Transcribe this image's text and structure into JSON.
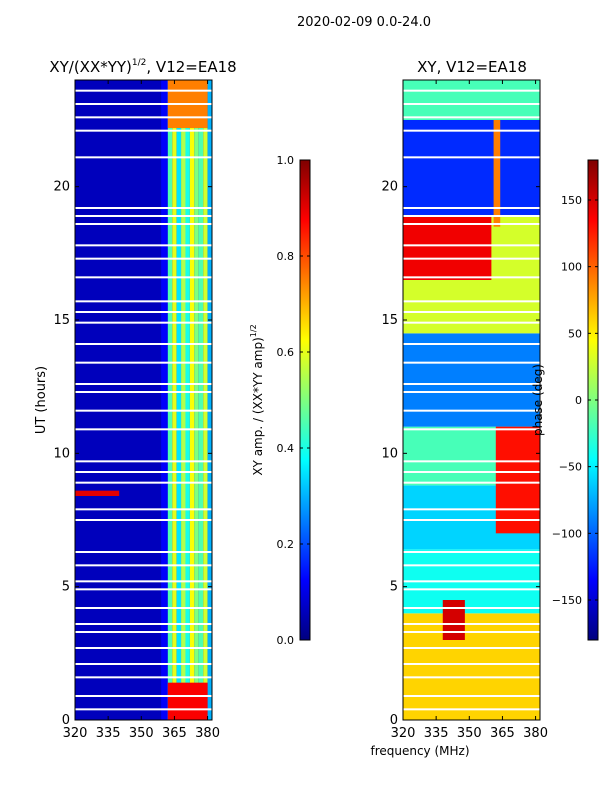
{
  "figure": {
    "suptitle": "2020-02-09 0.0-24.0",
    "shared_xlabel": "frequency (MHz)"
  },
  "colors": {
    "jet": [
      "#00007f",
      "#0000ff",
      "#007fff",
      "#00ffff",
      "#7fff7f",
      "#ffff00",
      "#ff7f00",
      "#ff0000",
      "#7f0000"
    ],
    "gap": "#ffffff"
  },
  "chart_data": [
    {
      "type": "heatmap",
      "title_main": "XY/(XX*YY)",
      "title_sup": "1/2",
      "title_rest": ", V12=EA18",
      "xlabel": "",
      "ylabel": "UT (hours)",
      "xlim": [
        320,
        382
      ],
      "ylim": [
        0,
        24
      ],
      "xticks": [
        320,
        335,
        350,
        365,
        380
      ],
      "yticks": [
        0,
        5,
        10,
        15,
        20
      ],
      "colorbar": {
        "label_main": "XY amp. / (XX*YY amp)",
        "label_sup": "1/2",
        "range": [
          0.0,
          1.0
        ],
        "ticks": [
          "0.0",
          "0.2",
          "0.4",
          "0.6",
          "0.8",
          "1.0"
        ],
        "tick_values": [
          0.0,
          0.2,
          0.4,
          0.6,
          0.8,
          1.0
        ]
      },
      "bands": [
        {
          "f0": 320,
          "f1": 359,
          "value": 0.06
        },
        {
          "f0": 359,
          "f1": 362,
          "value": 0.12
        },
        {
          "f0": 362,
          "f1": 364,
          "value": 0.45
        },
        {
          "f0": 364,
          "f1": 366,
          "value": 0.6
        },
        {
          "f0": 366,
          "f1": 368,
          "value": 0.35
        },
        {
          "f0": 368,
          "f1": 370,
          "value": 0.55
        },
        {
          "f0": 370,
          "f1": 372,
          "value": 0.4
        },
        {
          "f0": 372,
          "f1": 374,
          "value": 0.62
        },
        {
          "f0": 374,
          "f1": 376,
          "value": 0.5
        },
        {
          "f0": 376,
          "f1": 378,
          "value": 0.45
        },
        {
          "f0": 378,
          "f1": 380,
          "value": 0.58
        },
        {
          "f0": 380,
          "f1": 382,
          "value": 0.3
        }
      ],
      "hot_periods": [
        {
          "t0": 0.0,
          "t1": 1.4,
          "f0": 362,
          "f1": 380,
          "value": 0.88
        },
        {
          "t0": 22.2,
          "t1": 24.0,
          "f0": 362,
          "f1": 380,
          "value": 0.75
        },
        {
          "t0": 8.4,
          "t1": 8.6,
          "f0": 320,
          "f1": 340,
          "value": 0.9
        }
      ],
      "gaps_ut": [
        0.4,
        0.9,
        1.6,
        2.1,
        2.7,
        3.3,
        3.6,
        4.2,
        4.9,
        5.2,
        5.8,
        6.3,
        7.5,
        7.9,
        8.9,
        9.3,
        9.7,
        10.9,
        11.6,
        12.3,
        12.6,
        13.4,
        14.1,
        14.9,
        15.3,
        15.7,
        16.6,
        17.3,
        17.8,
        18.6,
        18.9,
        19.2,
        21.1,
        22.1,
        22.6,
        23.1,
        23.6
      ]
    },
    {
      "type": "heatmap",
      "title_main": "XY, V12=EA18",
      "title_sup": "",
      "title_rest": "",
      "xlabel": "frequency (MHz)",
      "ylabel": "",
      "xlim": [
        320,
        382
      ],
      "ylim": [
        0,
        24
      ],
      "xticks": [
        320,
        335,
        350,
        365,
        380
      ],
      "yticks": [
        0,
        5,
        10,
        15,
        20
      ],
      "colorbar": {
        "label_main": "phase (deg)",
        "label_sup": "",
        "range": [
          -180,
          180
        ],
        "ticks": [
          "−150",
          "−100",
          "−50",
          "0",
          "50",
          "100",
          "150"
        ],
        "tick_values": [
          -150,
          -100,
          -50,
          0,
          50,
          100,
          150
        ]
      },
      "blocks": [
        {
          "t0": 0.0,
          "t1": 4.0,
          "f0": 320,
          "f1": 382,
          "value": 60
        },
        {
          "t0": 4.0,
          "t1": 6.4,
          "f0": 320,
          "f1": 382,
          "value": -40
        },
        {
          "t0": 6.4,
          "t1": 8.8,
          "f0": 320,
          "f1": 382,
          "value": -60
        },
        {
          "t0": 8.8,
          "t1": 11.0,
          "f0": 320,
          "f1": 382,
          "value": -20
        },
        {
          "t0": 11.0,
          "t1": 14.5,
          "f0": 320,
          "f1": 382,
          "value": -90
        },
        {
          "t0": 14.5,
          "t1": 18.9,
          "f0": 320,
          "f1": 382,
          "value": 30
        },
        {
          "t0": 18.9,
          "t1": 22.5,
          "f0": 320,
          "f1": 382,
          "value": -120
        },
        {
          "t0": 22.5,
          "t1": 24.0,
          "f0": 320,
          "f1": 382,
          "value": -20
        },
        {
          "t0": 16.5,
          "t1": 18.9,
          "f0": 320,
          "f1": 360,
          "value": 140
        },
        {
          "t0": 7.0,
          "t1": 11.0,
          "f0": 362,
          "f1": 382,
          "value": 130
        },
        {
          "t0": 3.0,
          "t1": 4.5,
          "f0": 338,
          "f1": 348,
          "value": 150
        },
        {
          "t0": 18.5,
          "t1": 22.5,
          "f0": 361,
          "f1": 364,
          "value": 90
        }
      ],
      "gaps_ut": [
        0.4,
        0.9,
        1.6,
        2.1,
        2.7,
        3.3,
        3.6,
        4.2,
        4.9,
        5.2,
        5.8,
        6.3,
        7.5,
        7.9,
        8.9,
        9.3,
        9.7,
        10.9,
        11.6,
        12.3,
        12.6,
        13.4,
        14.1,
        14.9,
        15.3,
        15.7,
        16.6,
        17.3,
        17.8,
        18.6,
        18.9,
        19.2,
        21.1,
        22.1,
        22.6,
        23.1,
        23.6
      ]
    }
  ]
}
